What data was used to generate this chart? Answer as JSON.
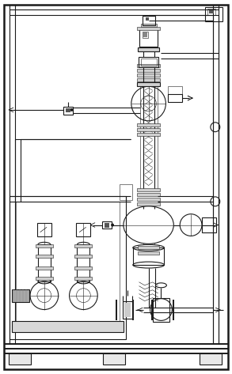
{
  "bg_color": "#ffffff",
  "line_color": "#1a1a1a",
  "fig_bg": "#ffffff",
  "lw_main": 0.8,
  "lw_thin": 0.4,
  "lw_thick": 1.4,
  "lw_frame": 1.8
}
